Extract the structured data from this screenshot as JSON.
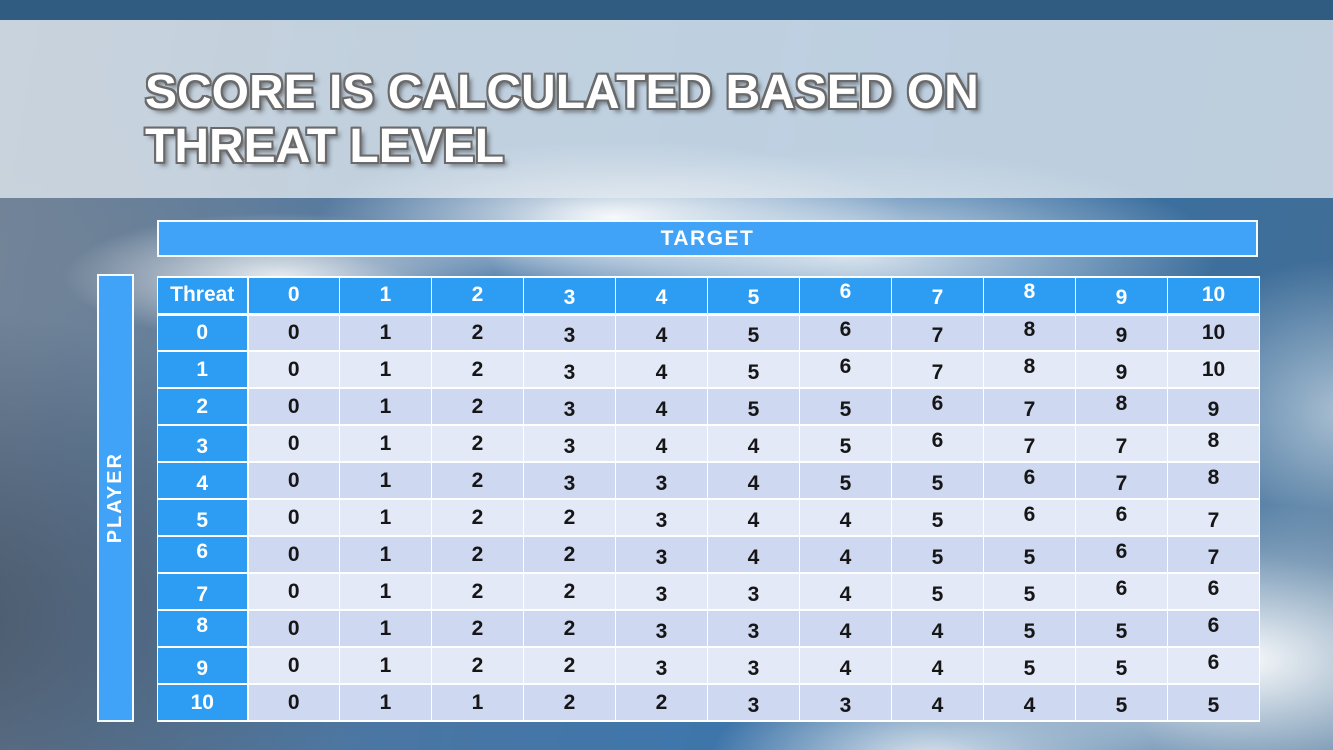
{
  "slide": {
    "title": "SCORE IS CALCULATED BASED ON THREAT LEVEL"
  },
  "table": {
    "target_label": "TARGET",
    "player_label": "PLAYER",
    "corner_label": "Threat",
    "column_headers": [
      "0",
      "1",
      "2",
      "3",
      "4",
      "5",
      "6",
      "7",
      "8",
      "9",
      "10"
    ],
    "rows": [
      {
        "header": "0",
        "values": [
          0,
          1,
          2,
          3,
          4,
          5,
          6,
          7,
          8,
          9,
          10
        ]
      },
      {
        "header": "1",
        "values": [
          0,
          1,
          2,
          3,
          4,
          5,
          6,
          7,
          8,
          9,
          10
        ]
      },
      {
        "header": "2",
        "values": [
          0,
          1,
          2,
          3,
          4,
          5,
          5,
          6,
          7,
          8,
          9
        ]
      },
      {
        "header": "3",
        "values": [
          0,
          1,
          2,
          3,
          4,
          4,
          5,
          6,
          7,
          7,
          8
        ]
      },
      {
        "header": "4",
        "values": [
          0,
          1,
          2,
          3,
          3,
          4,
          5,
          5,
          6,
          7,
          8
        ]
      },
      {
        "header": "5",
        "values": [
          0,
          1,
          2,
          2,
          3,
          4,
          4,
          5,
          6,
          6,
          7
        ]
      },
      {
        "header": "6",
        "values": [
          0,
          1,
          2,
          2,
          3,
          4,
          4,
          5,
          5,
          6,
          7
        ]
      },
      {
        "header": "7",
        "values": [
          0,
          1,
          2,
          2,
          3,
          3,
          4,
          5,
          5,
          6,
          6
        ]
      },
      {
        "header": "8",
        "values": [
          0,
          1,
          2,
          2,
          3,
          3,
          4,
          4,
          5,
          5,
          6
        ]
      },
      {
        "header": "9",
        "values": [
          0,
          1,
          2,
          2,
          3,
          3,
          4,
          4,
          5,
          5,
          6
        ]
      },
      {
        "header": "10",
        "values": [
          0,
          1,
          1,
          2,
          2,
          3,
          3,
          4,
          4,
          5,
          5
        ]
      }
    ]
  },
  "colors": {
    "top_bar": "#2f5c80",
    "axis_bar_blue": "#41a3f7",
    "header_cell_blue": "#2d9cf3",
    "band_even_row": "#cfd8f1",
    "band_odd_row": "#e4e9f8",
    "title_text": "#ffffff",
    "title_outline": "#6a6a6a"
  }
}
